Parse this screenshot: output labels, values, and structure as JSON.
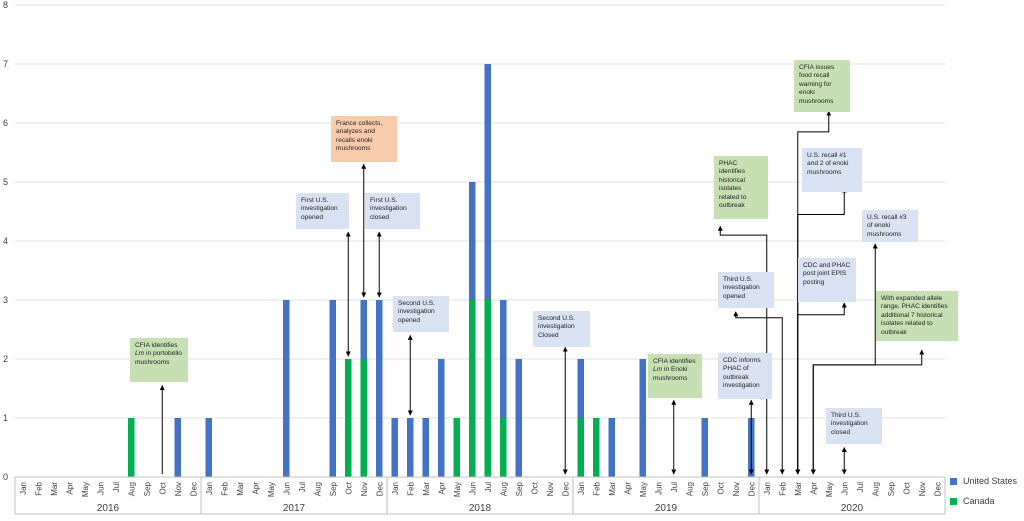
{
  "chart_data": {
    "type": "bar",
    "stacked": true,
    "categories": [
      "Jan",
      "Feb",
      "Mar",
      "Apr",
      "May",
      "Jun",
      "Jul",
      "Aug",
      "Sep",
      "Oct",
      "Nov",
      "Dec",
      "Jan",
      "Feb",
      "Mar",
      "Apr",
      "May",
      "Jun",
      "Jul",
      "Aug",
      "Sep",
      "Oct",
      "Nov",
      "Dec",
      "Jan",
      "Feb",
      "Mar",
      "Apr",
      "May",
      "Jun",
      "Jul",
      "Aug",
      "Sep",
      "Oct",
      "Nov",
      "Dec",
      "Jan",
      "Feb",
      "Mar",
      "Apr",
      "May",
      "Jun",
      "Jul",
      "Aug",
      "Sep",
      "Oct",
      "Nov",
      "Dec",
      "Jan",
      "Feb",
      "Mar",
      "Apr",
      "May",
      "Jun",
      "Jul",
      "Aug",
      "Sep",
      "Oct",
      "Nov",
      "Dec"
    ],
    "years": [
      "2016",
      "2017",
      "2018",
      "2019",
      "2020"
    ],
    "series": [
      {
        "name": "United States",
        "color": "#4472c4",
        "values": [
          0,
          0,
          0,
          0,
          0,
          0,
          0,
          0,
          0,
          0,
          1,
          0,
          1,
          0,
          0,
          0,
          0,
          3,
          0,
          0,
          3,
          0,
          1,
          3,
          1,
          1,
          1,
          2,
          0,
          2,
          4,
          2,
          2,
          0,
          0,
          0,
          1,
          0,
          1,
          0,
          2,
          0,
          0,
          0,
          1,
          0,
          0,
          1,
          0,
          0,
          0,
          0,
          0,
          0,
          0,
          0,
          0,
          0,
          0,
          0
        ]
      },
      {
        "name": "Canada",
        "color": "#00b050",
        "values": [
          0,
          0,
          0,
          0,
          0,
          0,
          0,
          1,
          0,
          0,
          0,
          0,
          0,
          0,
          0,
          0,
          0,
          0,
          0,
          0,
          0,
          2,
          2,
          0,
          0,
          0,
          0,
          0,
          1,
          3,
          3,
          1,
          0,
          0,
          0,
          0,
          1,
          1,
          0,
          0,
          0,
          0,
          0,
          0,
          0,
          0,
          0,
          0,
          0,
          0,
          0,
          0,
          0,
          0,
          0,
          0,
          0,
          0,
          0,
          0
        ]
      }
    ],
    "ylim": [
      0,
      8
    ],
    "yticks": [
      0,
      1,
      2,
      3,
      4,
      5,
      6,
      7,
      8
    ],
    "grid": true,
    "legend_position": "right"
  },
  "annotations": [
    {
      "id": "cfia-portobello",
      "kind": "ca",
      "text_pre": "CFIA identifies ",
      "text_em": "Lm",
      "text_post": " in portobello mushrooms",
      "arrow": {
        "type": "up",
        "month": 9,
        "to_value": 1.55
      }
    },
    {
      "id": "first-us-open",
      "kind": "us",
      "text": "First U.S. investigation opened",
      "arrow": {
        "type": "updown",
        "month": 21,
        "from_value": 2.05,
        "to_value": 4.15
      }
    },
    {
      "id": "france",
      "kind": "fr",
      "text": "France collects, analyzes and recalls enoki mushrooms",
      "arrow": {
        "type": "updown",
        "month": 22,
        "from_value": 3.05,
        "to_value": 5.3
      }
    },
    {
      "id": "first-us-closed",
      "kind": "us",
      "text": "First U.S. investigation closed",
      "arrow": {
        "type": "updown",
        "month": 23,
        "from_value": 3.05,
        "to_value": 4.15
      }
    },
    {
      "id": "second-us-open",
      "kind": "us",
      "text": "Second U.S. investigation opened",
      "arrow": {
        "type": "updown",
        "month": 25,
        "from_value": 1.05,
        "to_value": 2.4
      }
    },
    {
      "id": "second-us-closed",
      "kind": "us",
      "text": "Second U.S. investigation Closed",
      "arrow": {
        "type": "updown",
        "month": 35,
        "from_value": 0.05,
        "to_value": 2.2
      }
    },
    {
      "id": "cfia-enoki",
      "kind": "ca",
      "text_pre": "CFIA identifies ",
      "text_em": "Lm",
      "text_post": " in Enoki mushrooms",
      "arrow": {
        "type": "updown",
        "month": 42,
        "from_value": 0.05,
        "to_value": 1.3
      }
    },
    {
      "id": "cdc-informs",
      "kind": "us",
      "text": "CDC informs PHAC of outbreak investigation",
      "arrow": {
        "type": "updown",
        "month": 47,
        "from_value": 0.05,
        "to_value": 1.3
      }
    },
    {
      "id": "third-us-open",
      "kind": "us",
      "text": "Third U.S. investigation opened",
      "arrow": {
        "type": "elbow",
        "month": 49,
        "from_value": 0.05,
        "corner_value": 2.7,
        "tip_month": 46,
        "tip_value": 2.8
      }
    },
    {
      "id": "phac-historical",
      "kind": "ca",
      "text": "PHAC identifies historical isolates related to outbreak",
      "arrow": {
        "type": "elbow",
        "month": 48,
        "from_value": 0.05,
        "corner_value": 4.1,
        "tip_month": 45,
        "tip_value": 4.25
      }
    },
    {
      "id": "cfia-recall",
      "kind": "ca",
      "text": "CFIA issues food recall warning for enoki mushrooms",
      "arrow": {
        "type": "elbow",
        "month": 50,
        "from_value": 0.05,
        "corner_value": 5.85,
        "tip_month": 52,
        "tip_value": 6.2
      }
    },
    {
      "id": "us-recall-12",
      "kind": "us",
      "text": "U.S. recall #1 and 2 of enoki mushrooms",
      "arrow": {
        "type": "elbow",
        "month": 50,
        "from_value": 0.05,
        "corner_value": 4.45,
        "tip_month": 53,
        "tip_value": 4.9
      }
    },
    {
      "id": "cdc-phac-epis",
      "kind": "us",
      "text": "CDC and PHAC post joint EPIS posting",
      "arrow": {
        "type": "elbow",
        "month": 50,
        "from_value": 0.05,
        "corner_value": 2.75,
        "tip_month": 53,
        "tip_value": 2.95
      }
    },
    {
      "id": "us-recall-3",
      "kind": "us",
      "text": "U.S. recall #3 of enoki mushrooms",
      "arrow": {
        "type": "elbow",
        "month": 51,
        "from_value": 0.05,
        "corner_value": 1.9,
        "tip_month": 55,
        "tip_value": 3.95
      }
    },
    {
      "id": "expanded-allele",
      "kind": "ca",
      "text": "With expanded allele range, PHAC identifies additional 7 historical isolates related to outbreak",
      "arrow": {
        "type": "elbow",
        "month": 51,
        "from_value": 0.05,
        "corner_value": 1.9,
        "tip_month": 58,
        "tip_value": 2.15
      }
    },
    {
      "id": "third-us-closed",
      "kind": "us",
      "text": "Third U.S. investigation closed",
      "arrow": {
        "type": "updown",
        "month": 53,
        "from_value": 0.05,
        "to_value": 0.5
      }
    }
  ]
}
